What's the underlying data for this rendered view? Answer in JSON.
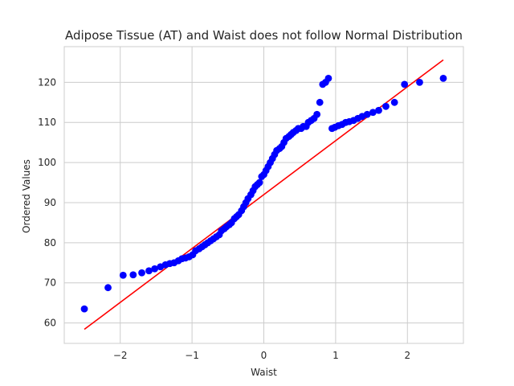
{
  "chart_data": {
    "type": "scatter",
    "title": "Adipose Tissue (AT) and Waist does not follow Normal Distribution",
    "xlabel": "Waist",
    "ylabel": "Ordered Values",
    "xlim": [
      -2.78,
      2.78
    ],
    "ylim": [
      54.9,
      128.9
    ],
    "x_ticks": [
      -2,
      -1,
      0,
      1,
      2
    ],
    "x_tick_labels": [
      "−2",
      "−1",
      "0",
      "1",
      "2"
    ],
    "y_ticks": [
      60,
      70,
      80,
      90,
      100,
      110,
      120
    ],
    "y_tick_labels": [
      "60",
      "70",
      "80",
      "90",
      "100",
      "110",
      "120"
    ],
    "grid": true,
    "colors": {
      "points": "#0000ff",
      "fit_line": "#ff0000",
      "grid": "#cccccc",
      "frame": "#cccccc"
    },
    "fit_line": {
      "x": [
        -2.5,
        2.5
      ],
      "y": [
        58.4,
        125.6
      ]
    },
    "series": [
      {
        "marker": "circle",
        "x": [
          -2.5,
          -2.17,
          -1.96,
          -1.82,
          -1.7,
          -1.6,
          -1.52,
          -1.44,
          -1.37,
          -1.31,
          -1.25,
          -1.19,
          -1.14,
          -1.09,
          -1.04,
          -0.99,
          -0.95,
          -0.9,
          -0.86,
          -0.82,
          -0.78,
          -0.74,
          -0.7,
          -0.66,
          -0.62,
          -0.59,
          -0.55,
          -0.52,
          -0.48,
          -0.45,
          -0.41,
          -0.38,
          -0.35,
          -0.31,
          -0.28,
          -0.25,
          -0.22,
          -0.18,
          -0.15,
          -0.12,
          -0.09,
          -0.06,
          -0.03,
          0.0,
          0.03,
          0.06,
          0.09,
          0.12,
          0.15,
          0.18,
          0.22,
          0.25,
          0.28,
          0.31,
          0.35,
          0.38,
          0.41,
          0.45,
          0.48,
          0.52,
          0.55,
          0.59,
          0.62,
          0.66,
          0.7,
          0.74,
          0.78,
          0.82,
          0.86,
          0.9,
          0.95,
          0.99,
          1.04,
          1.09,
          1.14,
          1.19,
          1.25,
          1.31,
          1.37,
          1.44,
          1.52,
          1.6,
          1.7,
          1.82,
          1.96,
          2.17,
          2.5
        ],
        "y": [
          63.5,
          68.8,
          71.9,
          72.0,
          72.5,
          73.0,
          73.5,
          74.0,
          74.5,
          74.8,
          75.0,
          75.5,
          76.0,
          76.2,
          76.5,
          77.0,
          78.0,
          78.5,
          79.0,
          79.5,
          80.0,
          80.5,
          81.0,
          81.5,
          82.0,
          83.0,
          83.5,
          84.0,
          84.5,
          85.0,
          86.0,
          86.5,
          87.0,
          88.0,
          89.0,
          90.0,
          91.0,
          92.0,
          93.0,
          94.0,
          94.5,
          95.0,
          96.5,
          97.0,
          98.0,
          99.0,
          100.0,
          101.0,
          102.0,
          103.0,
          103.5,
          104.0,
          105.0,
          106.0,
          106.5,
          107.0,
          107.5,
          108.0,
          108.5,
          108.5,
          109.0,
          109.0,
          110.0,
          110.5,
          111.0,
          112.0,
          115.0,
          119.5,
          120.0,
          121.0,
          108.5,
          108.8,
          109.2,
          109.5,
          110.0,
          110.2,
          110.5,
          111.0,
          111.5,
          112.0,
          112.5,
          113.0,
          114.0,
          115.0,
          119.5,
          120.0,
          121.0
        ]
      }
    ]
  }
}
